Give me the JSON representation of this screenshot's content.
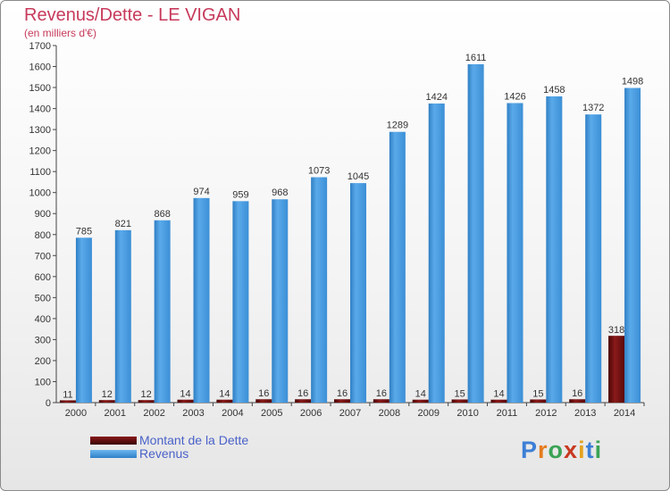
{
  "title": "Revenus/Dette - LE VIGAN",
  "subtitle": "(en milliers d'€)",
  "legend": [
    {
      "label": "Montant de la Dette",
      "color": "#5a0a0a"
    },
    {
      "label": "Revenus",
      "color": "#4a9fe0"
    }
  ],
  "logo": {
    "letters": [
      "P",
      "r",
      "o",
      "x",
      "i",
      "t",
      "i"
    ]
  },
  "colors": {
    "dette": "#6b0c0c",
    "revenus": "#4a9fe0",
    "title": "#c73a5b",
    "legend_text": "#4a62c8"
  },
  "chart_data": {
    "type": "bar",
    "categories": [
      "2000",
      "2001",
      "2002",
      "2003",
      "2004",
      "2005",
      "2006",
      "2007",
      "2008",
      "2009",
      "2010",
      "2011",
      "2012",
      "2013",
      "2014"
    ],
    "series": [
      {
        "name": "Montant de la Dette",
        "values": [
          11,
          12,
          12,
          14,
          14,
          16,
          16,
          16,
          16,
          14,
          15,
          14,
          15,
          16,
          318
        ]
      },
      {
        "name": "Revenus",
        "values": [
          785,
          821,
          868,
          974,
          959,
          968,
          1073,
          1045,
          1289,
          1424,
          1611,
          1426,
          1458,
          1372,
          1498
        ]
      }
    ],
    "title": "Revenus/Dette - LE VIGAN",
    "ylabel": "(en milliers d'€)",
    "ylim": [
      0,
      1700
    ],
    "yticks": [
      0,
      100,
      200,
      300,
      400,
      500,
      600,
      700,
      800,
      900,
      1000,
      1100,
      1200,
      1300,
      1400,
      1500,
      1600,
      1700
    ],
    "grid": false,
    "legend_position": "bottom-left"
  }
}
